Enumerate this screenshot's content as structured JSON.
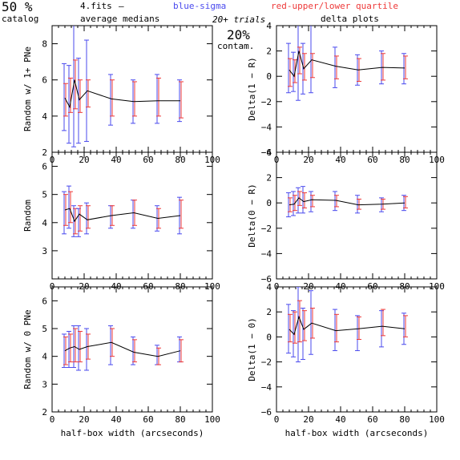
{
  "header": {
    "percent": "50 %",
    "catalog": "catalog",
    "file": "4.fits",
    "dash": "—",
    "blue_note": "blue-sigma",
    "red_note": "red-upper/lower quartile",
    "avg_medians": "average medians",
    "trials": "20+ trials",
    "delta_plots": "delta plots",
    "contam_pct": "20%",
    "contam": "contam."
  },
  "colors": {
    "median": "#000000",
    "sigma": "#4a4aee",
    "quartile": "#ee3a3a",
    "axis": "#000000"
  },
  "chart_data": [
    {
      "type": "line",
      "ylabel": "Random w/ 1+ PNe",
      "xlabel": "",
      "xlim": [
        0,
        100
      ],
      "ylim": [
        2,
        9
      ],
      "xticks": [
        0,
        20,
        40,
        60,
        80,
        100
      ],
      "yticks": [
        2,
        4,
        6,
        8
      ],
      "x": [
        8,
        11,
        14,
        17,
        22,
        37,
        51,
        66,
        80
      ],
      "median": [
        5.0,
        4.5,
        6.0,
        4.9,
        5.4,
        4.95,
        4.8,
        4.85,
        4.85
      ],
      "sigma_low": [
        3.2,
        2.5,
        2.3,
        2.5,
        2.6,
        3.5,
        3.6,
        3.6,
        3.7
      ],
      "sigma_high": [
        6.9,
        6.8,
        9.2,
        7.2,
        8.2,
        6.3,
        6.0,
        6.3,
        6.0
      ],
      "q_low": [
        4.0,
        4.2,
        4.4,
        4.2,
        4.5,
        4.0,
        4.0,
        4.0,
        3.9
      ],
      "q_high": [
        5.8,
        6.1,
        7.1,
        6.0,
        6.0,
        6.0,
        5.9,
        6.1,
        5.9
      ]
    },
    {
      "type": "line",
      "ylabel": "Delta(1 − R)",
      "xlabel": "",
      "xlim": [
        0,
        100
      ],
      "ylim": [
        -6,
        4
      ],
      "xticks": [
        0,
        20,
        40,
        60,
        80,
        100
      ],
      "yticks": [
        -6,
        -4,
        -2,
        0,
        2,
        4
      ],
      "x": [
        8,
        11,
        14,
        17,
        22,
        37,
        51,
        66,
        80
      ],
      "median": [
        0.5,
        0.0,
        2.0,
        0.6,
        1.3,
        0.8,
        0.5,
        0.7,
        0.65
      ],
      "sigma_low": [
        -1.3,
        -1.2,
        -1.9,
        -1.4,
        -1.3,
        -0.9,
        -0.7,
        -0.6,
        -0.6
      ],
      "sigma_high": [
        2.6,
        1.9,
        4.5,
        2.6,
        4.3,
        2.3,
        1.7,
        2.0,
        1.8
      ],
      "q_low": [
        -0.8,
        -0.5,
        0.2,
        -0.3,
        -0.1,
        -0.2,
        -0.4,
        -0.3,
        -0.2
      ],
      "q_high": [
        1.4,
        1.3,
        2.3,
        1.8,
        1.8,
        1.6,
        1.4,
        1.8,
        1.6
      ]
    },
    {
      "type": "line",
      "ylabel": "Random",
      "xlabel": "",
      "xlim": [
        0,
        100
      ],
      "ylim": [
        2,
        6.5
      ],
      "xticks": [
        0,
        20,
        40,
        60,
        80,
        100
      ],
      "yticks": [
        3,
        4,
        5,
        6
      ],
      "x": [
        8,
        11,
        14,
        17,
        22,
        37,
        51,
        66,
        80
      ],
      "median": [
        4.45,
        4.5,
        4.05,
        4.3,
        4.1,
        4.25,
        4.35,
        4.15,
        4.25
      ],
      "sigma_low": [
        3.6,
        3.8,
        3.5,
        3.5,
        3.6,
        3.8,
        3.8,
        3.7,
        3.6
      ],
      "sigma_high": [
        5.1,
        5.3,
        4.6,
        4.5,
        4.7,
        4.6,
        4.8,
        4.6,
        4.9
      ],
      "q_low": [
        3.9,
        4.0,
        3.6,
        3.7,
        3.8,
        3.9,
        3.9,
        3.8,
        3.8
      ],
      "q_high": [
        5.0,
        5.1,
        4.5,
        4.6,
        4.6,
        4.6,
        4.8,
        4.5,
        4.8
      ]
    },
    {
      "type": "line",
      "ylabel": "Delta(0 − R)",
      "xlabel": "",
      "xlim": [
        0,
        100
      ],
      "ylim": [
        -6,
        4
      ],
      "xticks": [
        0,
        20,
        40,
        60,
        80,
        100
      ],
      "yticks": [
        -6,
        -4,
        -2,
        0,
        2,
        4
      ],
      "x": [
        8,
        11,
        14,
        17,
        22,
        37,
        51,
        66,
        80
      ],
      "median": [
        -0.15,
        -0.1,
        0.4,
        0.1,
        0.25,
        0.2,
        -0.15,
        -0.1,
        0.0
      ],
      "sigma_low": [
        -1.1,
        -1.0,
        -0.8,
        -0.8,
        -0.7,
        -0.6,
        -0.8,
        -0.7,
        -0.6
      ],
      "sigma_high": [
        0.8,
        0.9,
        1.2,
        1.3,
        0.9,
        0.9,
        0.6,
        0.4,
        0.6
      ],
      "q_low": [
        -0.7,
        -0.6,
        -0.2,
        -0.4,
        -0.3,
        -0.3,
        -0.5,
        -0.5,
        -0.4
      ],
      "q_high": [
        0.4,
        0.6,
        0.9,
        0.8,
        0.6,
        0.6,
        0.3,
        0.3,
        0.5
      ]
    },
    {
      "type": "line",
      "ylabel": "Random w/ 0 PNe",
      "xlabel": "half-box width (arcseconds)",
      "xlim": [
        0,
        100
      ],
      "ylim": [
        2,
        6.5
      ],
      "xticks": [
        0,
        20,
        40,
        60,
        80,
        100
      ],
      "yticks": [
        2,
        3,
        4,
        5,
        6
      ],
      "x": [
        8,
        11,
        14,
        17,
        22,
        37,
        51,
        66,
        80
      ],
      "median": [
        4.2,
        4.3,
        4.35,
        4.25,
        4.35,
        4.5,
        4.15,
        4.0,
        4.2
      ],
      "sigma_low": [
        3.6,
        3.6,
        3.6,
        3.5,
        3.5,
        3.7,
        3.7,
        3.7,
        3.8
      ],
      "sigma_high": [
        4.8,
        4.9,
        5.1,
        5.1,
        5.0,
        5.1,
        4.7,
        4.4,
        4.7
      ],
      "q_low": [
        3.7,
        3.8,
        3.8,
        3.8,
        3.9,
        4.0,
        3.8,
        3.7,
        3.8
      ],
      "q_high": [
        4.7,
        4.8,
        5.0,
        4.9,
        4.8,
        5.0,
        4.6,
        4.3,
        4.6
      ]
    },
    {
      "type": "line",
      "ylabel": "Delta(1 − 0)",
      "xlabel": "half-box width (arcseconds)",
      "xlim": [
        0,
        100
      ],
      "ylim": [
        -6,
        4
      ],
      "xticks": [
        0,
        20,
        40,
        60,
        80,
        100
      ],
      "yticks": [
        -6,
        -4,
        -2,
        0,
        2,
        4
      ],
      "x": [
        8,
        11,
        14,
        17,
        22,
        37,
        51,
        66,
        80
      ],
      "median": [
        0.6,
        0.2,
        1.6,
        0.6,
        1.1,
        0.5,
        0.65,
        0.85,
        0.65
      ],
      "sigma_low": [
        -1.3,
        -1.6,
        -2.0,
        -1.8,
        -1.4,
        -1.1,
        -1.1,
        -0.8,
        -0.6
      ],
      "sigma_high": [
        2.6,
        2.1,
        4.0,
        2.3,
        3.7,
        2.2,
        1.7,
        2.1,
        1.9
      ],
      "q_low": [
        -0.4,
        -0.5,
        -0.4,
        -0.3,
        -0.1,
        -0.4,
        -0.2,
        0.1,
        0.0
      ],
      "q_high": [
        1.8,
        2.0,
        2.9,
        2.1,
        2.3,
        1.8,
        1.6,
        2.2,
        1.7
      ]
    }
  ]
}
